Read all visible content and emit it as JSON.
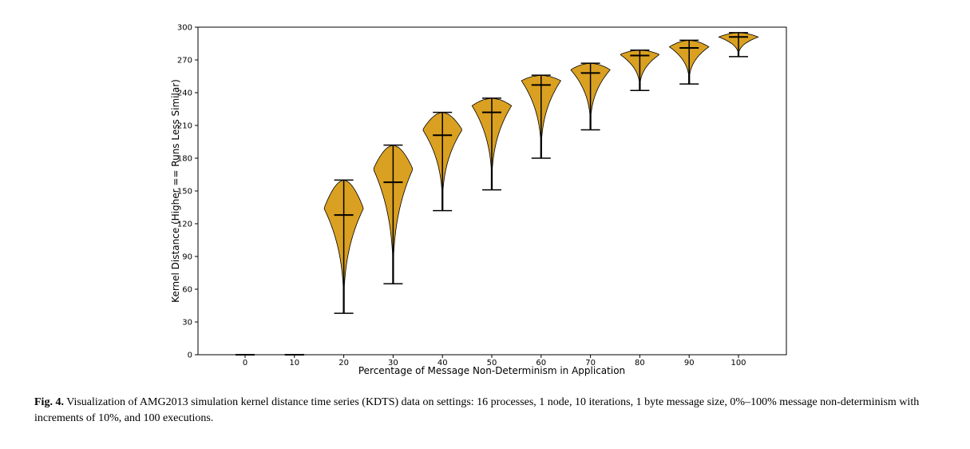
{
  "chart_data": {
    "type": "violin",
    "xlabel": "Percentage of Message Non-Determinism in Application",
    "ylabel": "Kernel Distance (Higher == Runs Less Similar)",
    "ylim": [
      0,
      300
    ],
    "yticks": [
      0,
      30,
      60,
      90,
      120,
      150,
      180,
      210,
      240,
      270,
      300
    ],
    "categories": [
      "0",
      "10",
      "20",
      "30",
      "40",
      "50",
      "60",
      "70",
      "80",
      "90",
      "100"
    ],
    "fill_color": "#DAA021",
    "edge_color": "#000000",
    "violins": [
      {
        "x": 0,
        "min": 0,
        "median": 0,
        "max": 0,
        "mode": 0,
        "width": 0
      },
      {
        "x": 10,
        "min": 0,
        "median": 0,
        "max": 0,
        "mode": 0,
        "width": 0
      },
      {
        "x": 20,
        "min": 38,
        "median": 128,
        "max": 160,
        "mode": 134,
        "width": 0.8
      },
      {
        "x": 30,
        "min": 65,
        "median": 158,
        "max": 192,
        "mode": 170,
        "width": 0.8
      },
      {
        "x": 40,
        "min": 132,
        "median": 201,
        "max": 222,
        "mode": 206,
        "width": 0.8
      },
      {
        "x": 50,
        "min": 151,
        "median": 222,
        "max": 235,
        "mode": 228,
        "width": 0.8
      },
      {
        "x": 60,
        "min": 180,
        "median": 247,
        "max": 256,
        "mode": 251,
        "width": 0.8
      },
      {
        "x": 70,
        "min": 206,
        "median": 258,
        "max": 267,
        "mode": 261,
        "width": 0.8
      },
      {
        "x": 80,
        "min": 242,
        "median": 274,
        "max": 279,
        "mode": 275,
        "width": 0.8
      },
      {
        "x": 90,
        "min": 248,
        "median": 281,
        "max": 288,
        "mode": 282,
        "width": 0.8
      },
      {
        "x": 100,
        "min": 273,
        "median": 291,
        "max": 295,
        "mode": 291,
        "width": 0.8
      }
    ]
  },
  "caption": {
    "label": "Fig. 4.",
    "text": "Visualization of AMG2013 simulation kernel distance time series (KDTS) data on settings: 16 processes, 1 node, 10 iterations, 1 byte message size, 0%–100% message non-determinism with increments of 10%, and 100 executions."
  }
}
